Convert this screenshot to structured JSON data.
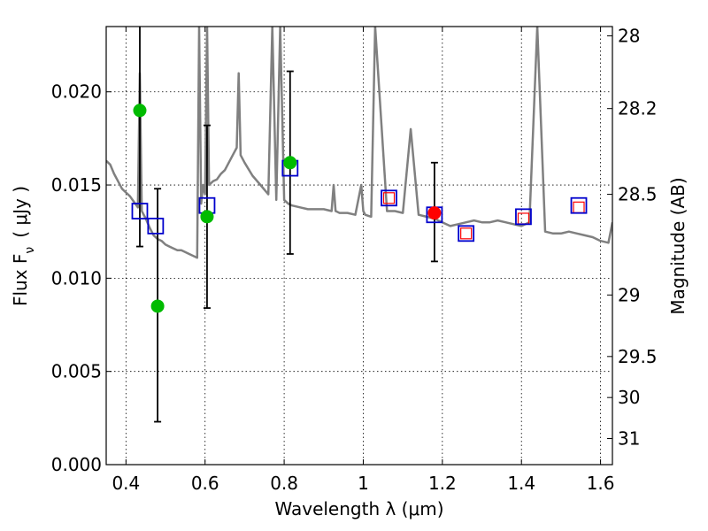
{
  "chart_data": {
    "type": "scatter",
    "xlabel": "Wavelength  λ (μm)",
    "ylabel": "Flux  F",
    "ylabel_sub": "ν",
    "ylabel_unit": "( μJy )",
    "y2label": "Magnitude (AB)",
    "xlim": [
      0.35,
      1.63
    ],
    "ylim": [
      0.0,
      0.0235
    ],
    "x_ticks": [
      0.4,
      0.6,
      0.8,
      1.0,
      1.2,
      1.4,
      1.6
    ],
    "x_tick_labels": [
      "0.4",
      "0.6",
      "0.8",
      "1",
      "1.2",
      "1.4",
      "1.6"
    ],
    "y_ticks": [
      0.0,
      0.005,
      0.01,
      0.015,
      0.02
    ],
    "y_tick_labels": [
      "0.000",
      "0.005",
      "0.010",
      "0.015",
      "0.020"
    ],
    "y2_ticks": [
      {
        "label": "28",
        "flux": 0.023
      },
      {
        "label": "28.2",
        "flux": 0.0191
      },
      {
        "label": "28.5",
        "flux": 0.0145
      },
      {
        "label": "29",
        "flux": 0.0091
      },
      {
        "label": "29.5",
        "flux": 0.0058
      },
      {
        "label": "30",
        "flux": 0.0036
      },
      {
        "label": "31",
        "flux": 0.0014
      }
    ],
    "grid": true,
    "colors": {
      "template": "#808080",
      "model_box": "#0000cc",
      "observed_box": "#ff0000",
      "green_point": "#00bb00",
      "red_point": "#ff0000",
      "errorbar": "#000000"
    },
    "template_spectrum": {
      "x": [
        0.35,
        0.36,
        0.37,
        0.38,
        0.39,
        0.4,
        0.41,
        0.42,
        0.43,
        0.435,
        0.44,
        0.45,
        0.46,
        0.47,
        0.48,
        0.49,
        0.5,
        0.51,
        0.52,
        0.53,
        0.54,
        0.55,
        0.56,
        0.57,
        0.58,
        0.585,
        0.59,
        0.595,
        0.6,
        0.605,
        0.61,
        0.62,
        0.63,
        0.64,
        0.65,
        0.66,
        0.67,
        0.68,
        0.685,
        0.69,
        0.7,
        0.72,
        0.74,
        0.76,
        0.77,
        0.78,
        0.79,
        0.8,
        0.81,
        0.82,
        0.84,
        0.86,
        0.88,
        0.9,
        0.92,
        0.925,
        0.93,
        0.94,
        0.96,
        0.98,
        0.995,
        1.0,
        1.005,
        1.02,
        1.03,
        1.06,
        1.08,
        1.1,
        1.12,
        1.14,
        1.16,
        1.18,
        1.2,
        1.22,
        1.24,
        1.26,
        1.28,
        1.3,
        1.32,
        1.34,
        1.36,
        1.38,
        1.4,
        1.42,
        1.44,
        1.46,
        1.48,
        1.5,
        1.52,
        1.54,
        1.56,
        1.58,
        1.6,
        1.62,
        1.63
      ],
      "y": [
        0.0163,
        0.0161,
        0.0156,
        0.0152,
        0.0148,
        0.0146,
        0.0144,
        0.0141,
        0.0138,
        0.021,
        0.0136,
        0.0132,
        0.0127,
        0.0123,
        0.0121,
        0.012,
        0.0118,
        0.0117,
        0.0116,
        0.0115,
        0.0115,
        0.0114,
        0.0113,
        0.0112,
        0.0111,
        0.0235,
        0.014,
        0.015,
        0.0145,
        0.0235,
        0.015,
        0.0152,
        0.0153,
        0.0156,
        0.0158,
        0.0162,
        0.0166,
        0.017,
        0.021,
        0.0166,
        0.0162,
        0.0155,
        0.015,
        0.0145,
        0.0235,
        0.0142,
        0.0235,
        0.0142,
        0.014,
        0.0139,
        0.0138,
        0.0137,
        0.0137,
        0.0137,
        0.0136,
        0.015,
        0.0136,
        0.0135,
        0.0135,
        0.0134,
        0.015,
        0.0136,
        0.0134,
        0.0133,
        0.0235,
        0.0136,
        0.0136,
        0.0135,
        0.018,
        0.0134,
        0.0133,
        0.0132,
        0.013,
        0.0128,
        0.0129,
        0.013,
        0.0131,
        0.013,
        0.013,
        0.0131,
        0.013,
        0.0129,
        0.0128,
        0.013,
        0.0235,
        0.0125,
        0.0124,
        0.0124,
        0.0125,
        0.0124,
        0.0123,
        0.0122,
        0.012,
        0.0119,
        0.013
      ]
    },
    "model_points": [
      {
        "x": 0.435,
        "y": 0.0136
      },
      {
        "x": 0.475,
        "y": 0.0128
      },
      {
        "x": 0.605,
        "y": 0.0139
      },
      {
        "x": 0.815,
        "y": 0.0159
      },
      {
        "x": 1.065,
        "y": 0.0143
      },
      {
        "x": 1.18,
        "y": 0.0134
      },
      {
        "x": 1.26,
        "y": 0.0124
      },
      {
        "x": 1.405,
        "y": 0.0133
      },
      {
        "x": 1.545,
        "y": 0.0139
      }
    ],
    "observed_points": [
      {
        "x": 1.065,
        "y": 0.0143
      },
      {
        "x": 1.26,
        "y": 0.0124
      },
      {
        "x": 1.405,
        "y": 0.0132
      },
      {
        "x": 1.545,
        "y": 0.0138
      }
    ],
    "green_points": [
      {
        "x": 0.435,
        "y": 0.019
      },
      {
        "x": 0.48,
        "y": 0.0085
      },
      {
        "x": 0.605,
        "y": 0.0133
      },
      {
        "x": 0.815,
        "y": 0.0162
      }
    ],
    "red_points": [
      {
        "x": 1.18,
        "y": 0.0135
      }
    ],
    "error_bars": [
      {
        "x": 0.435,
        "low": 0.0117,
        "high": 0.0235
      },
      {
        "x": 0.48,
        "low": 0.0023,
        "high": 0.0148
      },
      {
        "x": 0.605,
        "low": 0.0084,
        "high": 0.0182
      },
      {
        "x": 0.815,
        "low": 0.0113,
        "high": 0.0211
      },
      {
        "x": 1.18,
        "low": 0.0109,
        "high": 0.0162
      }
    ]
  }
}
